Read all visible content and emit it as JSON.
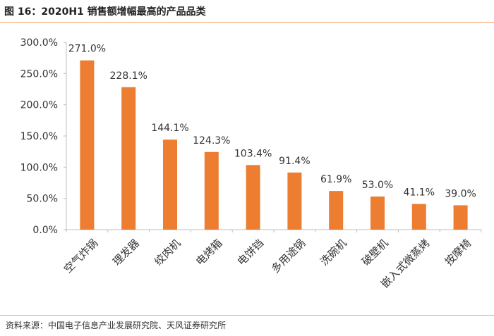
{
  "header": {
    "title": "图 16：2020H1 销售额增幅最高的产品品类"
  },
  "footer": {
    "source": "资料来源：中国电子信息产业发展研究院、天风证券研究所"
  },
  "chart_data": {
    "type": "bar",
    "categories": [
      "空气炸锅",
      "理发器",
      "绞肉机",
      "电烤箱",
      "电饼铛",
      "多用途锅",
      "洗碗机",
      "破壁机",
      "嵌入式微蒸烤",
      "按摩椅"
    ],
    "values": [
      271.0,
      228.1,
      144.1,
      124.3,
      103.4,
      91.4,
      61.9,
      53.0,
      41.1,
      39.0
    ],
    "value_labels": [
      "271.0%",
      "228.1%",
      "144.1%",
      "124.3%",
      "103.4%",
      "91.4%",
      "61.9%",
      "53.0%",
      "41.1%",
      "39.0%"
    ],
    "yticks": [
      "0.0%",
      "50.0%",
      "100.0%",
      "150.0%",
      "200.0%",
      "250.0%",
      "300.0%"
    ],
    "ylim": [
      0,
      300
    ],
    "bar_color": "#ed7d31",
    "grid": false,
    "legend": "none"
  }
}
